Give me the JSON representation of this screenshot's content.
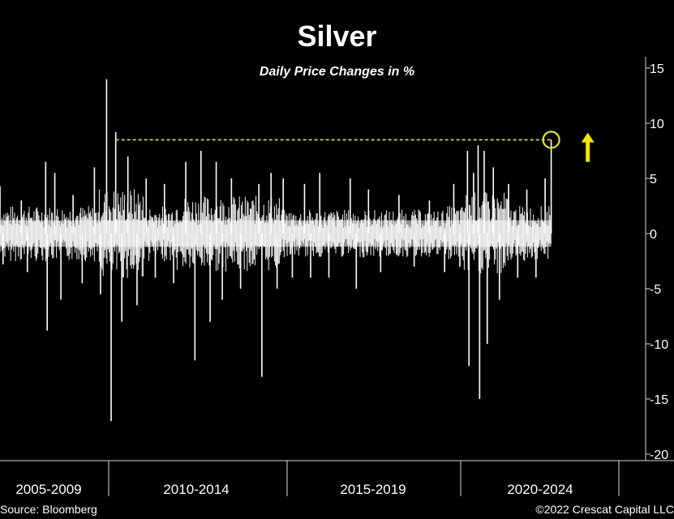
{
  "chart_data": {
    "type": "line",
    "title": "Silver",
    "subtitle": "Daily Price Changes in %",
    "xlabel": "",
    "ylabel": "",
    "ylim": [
      -20,
      15
    ],
    "y_ticks": [
      15,
      10,
      5,
      0,
      -5,
      -10,
      -15,
      -20
    ],
    "y_tick_labels": [
      "15",
      "10",
      "5",
      "0",
      "-5",
      "-10",
      "-15",
      "-20"
    ],
    "x_range": [
      2004.8,
      2026.0
    ],
    "x_categories": [
      "2005-2009",
      "2010-2014",
      "2015-2019",
      "2020-2024"
    ],
    "x_boundaries": [
      2010,
      2015,
      2020,
      2025
    ],
    "series": [
      {
        "name": "Daily Price Change %",
        "color": "#ffffff",
        "points": [
          {
            "x": 2004.8,
            "y": 4.3
          },
          {
            "x": 2004.9,
            "y": -2.8
          },
          {
            "x": 2005.5,
            "y": 3.0
          },
          {
            "x": 2005.7,
            "y": -3.5
          },
          {
            "x": 2006.3,
            "y": 6.5
          },
          {
            "x": 2006.35,
            "y": -8.8
          },
          {
            "x": 2006.6,
            "y": 5.5
          },
          {
            "x": 2006.8,
            "y": -6.0
          },
          {
            "x": 2007.2,
            "y": 3.5
          },
          {
            "x": 2007.5,
            "y": -4.5
          },
          {
            "x": 2007.9,
            "y": 6.0
          },
          {
            "x": 2008.1,
            "y": -5.5
          },
          {
            "x": 2008.3,
            "y": 14.0
          },
          {
            "x": 2008.45,
            "y": -17.0
          },
          {
            "x": 2008.6,
            "y": 9.2
          },
          {
            "x": 2008.8,
            "y": -8.0
          },
          {
            "x": 2009.0,
            "y": 7.0
          },
          {
            "x": 2009.3,
            "y": -6.5
          },
          {
            "x": 2009.6,
            "y": 5.0
          },
          {
            "x": 2009.9,
            "y": -4.0
          },
          {
            "x": 2010.2,
            "y": 4.5
          },
          {
            "x": 2010.5,
            "y": -4.5
          },
          {
            "x": 2010.9,
            "y": 6.5
          },
          {
            "x": 2011.2,
            "y": -11.5
          },
          {
            "x": 2011.4,
            "y": 7.5
          },
          {
            "x": 2011.7,
            "y": -8.0
          },
          {
            "x": 2011.9,
            "y": 6.5
          },
          {
            "x": 2012.1,
            "y": -6.0
          },
          {
            "x": 2012.4,
            "y": 5.0
          },
          {
            "x": 2012.7,
            "y": -5.0
          },
          {
            "x": 2013.3,
            "y": 4.5
          },
          {
            "x": 2013.4,
            "y": -13.0
          },
          {
            "x": 2013.7,
            "y": 5.5
          },
          {
            "x": 2013.9,
            "y": -5.0
          },
          {
            "x": 2014.1,
            "y": 5.0
          },
          {
            "x": 2014.4,
            "y": -4.0
          },
          {
            "x": 2014.8,
            "y": 4.5
          },
          {
            "x": 2015.0,
            "y": -4.0
          },
          {
            "x": 2015.3,
            "y": 5.5
          },
          {
            "x": 2015.6,
            "y": -4.0
          },
          {
            "x": 2016.3,
            "y": 5.0
          },
          {
            "x": 2016.5,
            "y": -5.0
          },
          {
            "x": 2016.9,
            "y": 4.0
          },
          {
            "x": 2017.3,
            "y": -3.5
          },
          {
            "x": 2017.9,
            "y": 3.5
          },
          {
            "x": 2018.4,
            "y": -3.0
          },
          {
            "x": 2018.9,
            "y": 3.0
          },
          {
            "x": 2019.4,
            "y": -3.5
          },
          {
            "x": 2019.7,
            "y": 4.5
          },
          {
            "x": 2019.9,
            "y": -3.0
          },
          {
            "x": 2020.15,
            "y": 7.5
          },
          {
            "x": 2020.2,
            "y": -12.0
          },
          {
            "x": 2020.35,
            "y": 5.5
          },
          {
            "x": 2020.5,
            "y": 8.0
          },
          {
            "x": 2020.55,
            "y": -15.0
          },
          {
            "x": 2020.7,
            "y": 7.5
          },
          {
            "x": 2020.8,
            "y": -10.0
          },
          {
            "x": 2021.0,
            "y": 6.0
          },
          {
            "x": 2021.2,
            "y": -6.0
          },
          {
            "x": 2021.5,
            "y": 4.5
          },
          {
            "x": 2021.8,
            "y": -4.0
          },
          {
            "x": 2022.1,
            "y": 4.0
          },
          {
            "x": 2022.4,
            "y": -4.0
          },
          {
            "x": 2022.7,
            "y": 5.0
          },
          {
            "x": 2022.9,
            "y": 8.5
          }
        ]
      }
    ],
    "annotations": [
      {
        "type": "hline",
        "y": 8.5,
        "x_start": 2008.6,
        "x_end": 2022.9,
        "style": "dashed",
        "color": "#e8e81a"
      },
      {
        "type": "circle",
        "x": 2022.9,
        "y": 8.5,
        "color": "#e8e81a"
      },
      {
        "type": "arrow",
        "x": 2024.1,
        "direction": "up",
        "y_from": 6.5,
        "y_to": 9.0,
        "color": "#f2e600"
      }
    ]
  },
  "footer": {
    "source": "Source: Bloomberg",
    "copyright": "©2022 Crescat Capital LLC"
  }
}
